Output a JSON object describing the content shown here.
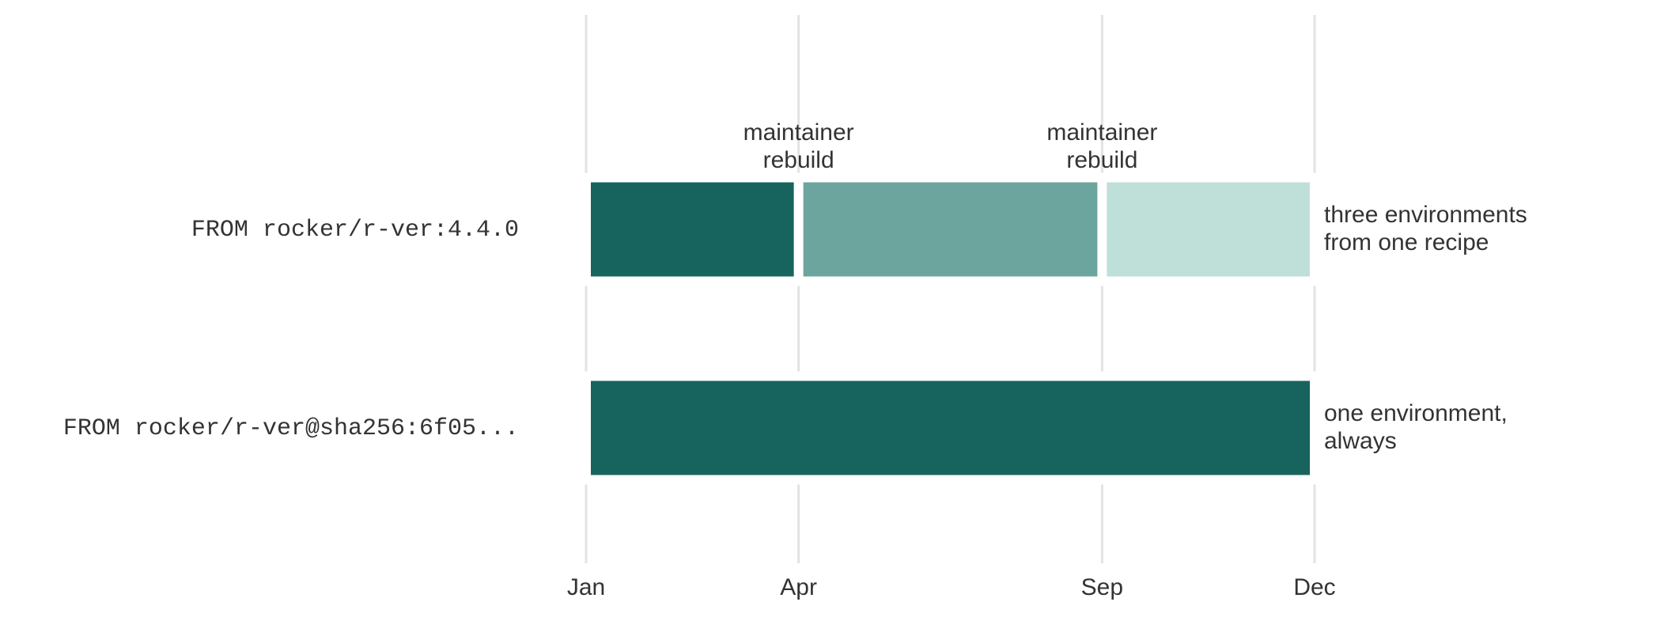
{
  "chart_data": {
    "type": "gantt",
    "xlim": [
      0,
      12
    ],
    "xticks": [
      {
        "value": 0,
        "label": "Jan"
      },
      {
        "value": 3.5,
        "label": "Apr"
      },
      {
        "value": 8.5,
        "label": "Sep"
      },
      {
        "value": 12,
        "label": "Dec"
      }
    ],
    "grid": true,
    "rows": [
      {
        "label": "FROM rocker/r-ver:4.4.0",
        "note": [
          "three environments",
          "from one recipe"
        ],
        "note_color": "#9b1c22",
        "segments": [
          {
            "start": 0,
            "end": 3.5,
            "color": "#17645e"
          },
          {
            "start": 3.5,
            "end": 8.5,
            "color": "#6ba59d"
          },
          {
            "start": 8.5,
            "end": 12,
            "color": "#bfdfd9"
          }
        ]
      },
      {
        "label": "FROM rocker/r-ver@sha256:6f05...",
        "note": [
          "one environment,",
          "always"
        ],
        "note_color": "#333333",
        "segments": [
          {
            "start": 0,
            "end": 12,
            "color": "#17645e"
          }
        ]
      }
    ],
    "annotations": [
      {
        "x": 3.5,
        "text": [
          "maintainer",
          "rebuild"
        ]
      },
      {
        "x": 8.5,
        "text": [
          "maintainer",
          "rebuild"
        ]
      }
    ]
  }
}
